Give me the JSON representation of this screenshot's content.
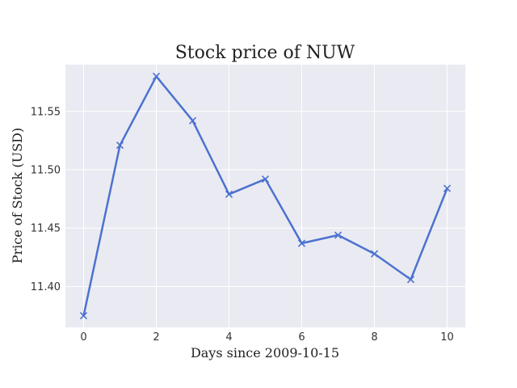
{
  "chart_data": {
    "type": "line",
    "title": "Stock price of NUW",
    "xlabel": "Days since 2009-10-15",
    "ylabel": "Price of Stock (USD)",
    "x": [
      0,
      1,
      2,
      3,
      4,
      5,
      6,
      7,
      8,
      9,
      10
    ],
    "series": [
      {
        "values": [
          11.375,
          11.521,
          11.58,
          11.542,
          11.479,
          11.492,
          11.437,
          11.444,
          11.428,
          11.406,
          11.484
        ]
      }
    ],
    "xticks": [
      "0",
      "2",
      "4",
      "6",
      "8",
      "10"
    ],
    "yticks": [
      "11.40",
      "11.45",
      "11.50",
      "11.55"
    ],
    "xlim": [
      -0.5,
      10.5
    ],
    "ylim": [
      11.365,
      11.59
    ],
    "grid": true,
    "marker": "x",
    "colors": {
      "background": "#eaeaf2",
      "line": "#4c72d0",
      "grid": "#ffffff"
    }
  }
}
